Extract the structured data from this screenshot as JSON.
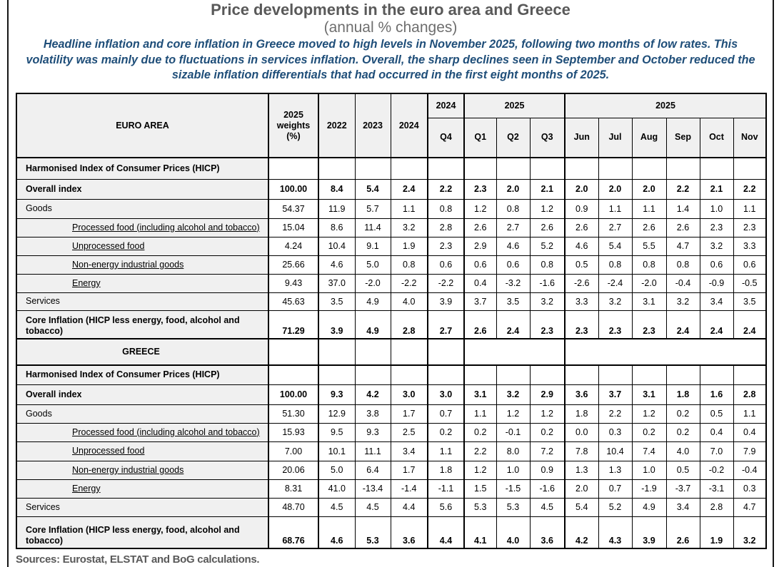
{
  "page": {
    "title": "Price developments in the euro area and Greece",
    "subtitle": "(annual % changes)",
    "summary_lines": [
      "Headline inflation and core inflation in Greece moved to high levels in November 2025, following two months of low rates. This",
      "volatility was mainly due to fluctuations in services inflation. Overall, the sharp declines seen in September and October reduced the",
      "sizable inflation differentials that had occurred in the first eight months of 2025."
    ],
    "sources": "Sources: Eurostat, ELSTAT and BoG calculations."
  },
  "chart_data": {
    "type": "table",
    "title": "Price developments in the euro area and Greece (annual % changes)",
    "weights_header": "2025 weights (%)",
    "year_columns": [
      "2022",
      "2023",
      "2024"
    ],
    "column_groups": [
      {
        "label": "2024",
        "columns": [
          "Q4"
        ]
      },
      {
        "label": "2025",
        "columns": [
          "Q1",
          "Q2",
          "Q3"
        ]
      },
      {
        "label": "2025",
        "columns": [
          "Jun",
          "Jul",
          "Aug",
          "Sep",
          "Oct",
          "Nov"
        ]
      }
    ],
    "sections": [
      {
        "name": "EURO AREA",
        "rows": [
          {
            "label": "Harmonised Index of Consumer Prices (HICP)",
            "style": "heading",
            "values": []
          },
          {
            "label": "Overall index",
            "style": "bold",
            "values": [
              "100.00",
              "8.4",
              "5.4",
              "2.4",
              "2.2",
              "2.3",
              "2.0",
              "2.1",
              "2.0",
              "2.0",
              "2.0",
              "2.2",
              "2.1",
              "2.2"
            ]
          },
          {
            "label": "Goods",
            "style": "plain",
            "values": [
              "54.37",
              "11.9",
              "5.7",
              "1.1",
              "0.8",
              "1.2",
              "0.8",
              "1.2",
              "0.9",
              "1.1",
              "1.1",
              "1.4",
              "1.0",
              "1.1"
            ]
          },
          {
            "label": "Processed food (including alcohol and tobacco)",
            "style": "sub",
            "values": [
              "15.04",
              "8.6",
              "11.4",
              "3.2",
              "2.8",
              "2.6",
              "2.7",
              "2.6",
              "2.6",
              "2.7",
              "2.6",
              "2.6",
              "2.3",
              "2.3"
            ]
          },
          {
            "label": "Unprocessed food",
            "style": "sub",
            "values": [
              "4.24",
              "10.4",
              "9.1",
              "1.9",
              "2.3",
              "2.9",
              "4.6",
              "5.2",
              "4.6",
              "5.4",
              "5.5",
              "4.7",
              "3.2",
              "3.3"
            ]
          },
          {
            "label": "Non-energy industrial goods",
            "style": "sub",
            "values": [
              "25.66",
              "4.6",
              "5.0",
              "0.8",
              "0.6",
              "0.6",
              "0.6",
              "0.8",
              "0.5",
              "0.8",
              "0.8",
              "0.8",
              "0.6",
              "0.6"
            ]
          },
          {
            "label": "Energy",
            "style": "sub",
            "values": [
              "9.43",
              "37.0",
              "-2.0",
              "-2.2",
              "-2.2",
              "0.4",
              "-3.2",
              "-1.6",
              "-2.6",
              "-2.4",
              "-2.0",
              "-0.4",
              "-0.9",
              "-0.5"
            ]
          },
          {
            "label": "Services",
            "style": "plain",
            "values": [
              "45.63",
              "3.5",
              "4.9",
              "4.0",
              "3.9",
              "3.7",
              "3.5",
              "3.2",
              "3.3",
              "3.2",
              "3.1",
              "3.2",
              "3.4",
              "3.5"
            ]
          },
          {
            "label": "Core Inflation (HICP less energy, food, alcohol and tobacco)",
            "style": "core",
            "values": [
              "71.29",
              "3.9",
              "4.9",
              "2.8",
              "2.7",
              "2.6",
              "2.4",
              "2.3",
              "2.3",
              "2.3",
              "2.3",
              "2.4",
              "2.4",
              "2.4"
            ]
          }
        ]
      },
      {
        "name": "GREECE",
        "rows": [
          {
            "label": "Harmonised Index of Consumer Prices (HICP)",
            "style": "heading",
            "values": []
          },
          {
            "label": "Overall index",
            "style": "bold",
            "values": [
              "100.00",
              "9.3",
              "4.2",
              "3.0",
              "3.0",
              "3.1",
              "3.2",
              "2.9",
              "3.6",
              "3.7",
              "3.1",
              "1.8",
              "1.6",
              "2.8"
            ]
          },
          {
            "label": "Goods",
            "style": "plain",
            "values": [
              "51.30",
              "12.9",
              "3.8",
              "1.7",
              "0.7",
              "1.1",
              "1.2",
              "1.2",
              "1.8",
              "2.2",
              "1.2",
              "0.2",
              "0.5",
              "1.1"
            ]
          },
          {
            "label": "Processed food (including alcohol and tobacco)",
            "style": "sub",
            "values": [
              "15.93",
              "9.5",
              "9.3",
              "2.5",
              "0.2",
              "0.2",
              "-0.1",
              "0.2",
              "0.0",
              "0.3",
              "0.2",
              "0.2",
              "0.4",
              "0.4"
            ]
          },
          {
            "label": "Unprocessed food",
            "style": "sub",
            "values": [
              "7.00",
              "10.1",
              "11.1",
              "3.4",
              "1.1",
              "2.2",
              "8.0",
              "7.2",
              "7.8",
              "10.4",
              "7.4",
              "4.0",
              "7.0",
              "7.9"
            ]
          },
          {
            "label": "Non-energy industrial goods",
            "style": "sub",
            "values": [
              "20.06",
              "5.0",
              "6.4",
              "1.7",
              "1.8",
              "1.2",
              "1.0",
              "0.9",
              "1.3",
              "1.3",
              "1.0",
              "0.5",
              "-0.2",
              "-0.4"
            ]
          },
          {
            "label": "Energy",
            "style": "sub",
            "values": [
              "8.31",
              "41.0",
              "-13.4",
              "-1.4",
              "-1.1",
              "1.5",
              "-1.5",
              "-1.6",
              "2.0",
              "0.7",
              "-1.9",
              "-3.7",
              "-3.1",
              "0.3"
            ]
          },
          {
            "label": "Services",
            "style": "plain",
            "values": [
              "48.70",
              "4.5",
              "4.5",
              "4.4",
              "5.6",
              "5.3",
              "5.3",
              "4.5",
              "5.4",
              "5.2",
              "4.9",
              "3.4",
              "2.8",
              "4.7"
            ]
          },
          {
            "label": "Core Inflation (HICP less energy, food, alcohol and tobacco)",
            "style": "core",
            "values": [
              "68.76",
              "4.6",
              "5.3",
              "3.6",
              "4.4",
              "4.1",
              "4.0",
              "3.6",
              "4.2",
              "4.3",
              "3.9",
              "2.6",
              "1.9",
              "3.2"
            ]
          }
        ]
      }
    ]
  }
}
